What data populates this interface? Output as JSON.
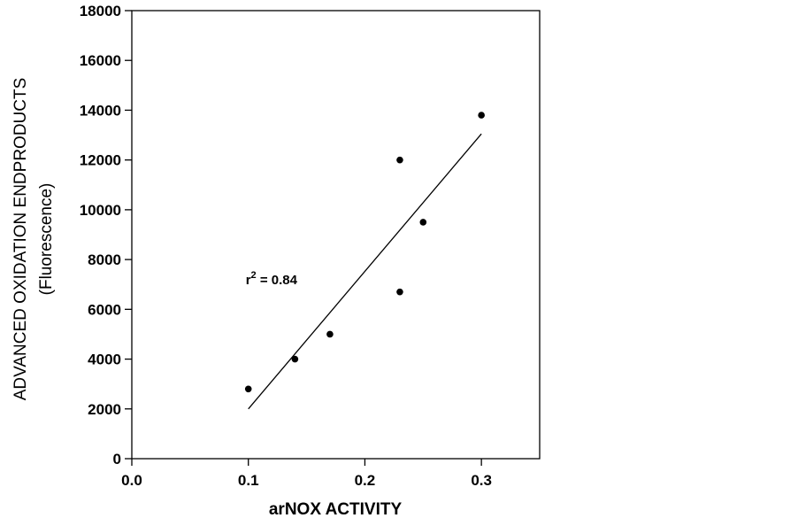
{
  "chart_data": {
    "type": "scatter",
    "title": "",
    "xlabel": "arNOX ACTIVITY",
    "ylabel_line1": "ADVANCED OXIDATION ENDPRODUCTS",
    "ylabel_line2": "(Fluorescence)",
    "xlim": [
      0.0,
      0.35
    ],
    "ylim": [
      0,
      18000
    ],
    "x_ticks": [
      0.0,
      0.1,
      0.2,
      0.3
    ],
    "x_tick_labels": [
      "0.0",
      "0.1",
      "0.2",
      "0.3"
    ],
    "y_ticks": [
      0,
      2000,
      4000,
      6000,
      8000,
      10000,
      12000,
      14000,
      16000,
      18000
    ],
    "y_tick_labels": [
      "0",
      "2000",
      "4000",
      "6000",
      "8000",
      "10000",
      "12000",
      "14000",
      "16000",
      "18000"
    ],
    "points": [
      {
        "x": 0.1,
        "y": 2800
      },
      {
        "x": 0.14,
        "y": 4000
      },
      {
        "x": 0.17,
        "y": 5000
      },
      {
        "x": 0.23,
        "y": 12000
      },
      {
        "x": 0.23,
        "y": 6700
      },
      {
        "x": 0.25,
        "y": 9500
      },
      {
        "x": 0.3,
        "y": 13800
      }
    ],
    "fit_line": {
      "x": [
        0.1,
        0.3
      ],
      "y": [
        2000,
        13050
      ]
    },
    "annotation": {
      "base": "r",
      "sup": "2",
      "rest": " = 0.84",
      "x": 0.1,
      "y": 7500
    },
    "grid": false,
    "colors": {
      "points": "#000000",
      "line": "#000000",
      "axes": "#000000"
    }
  }
}
